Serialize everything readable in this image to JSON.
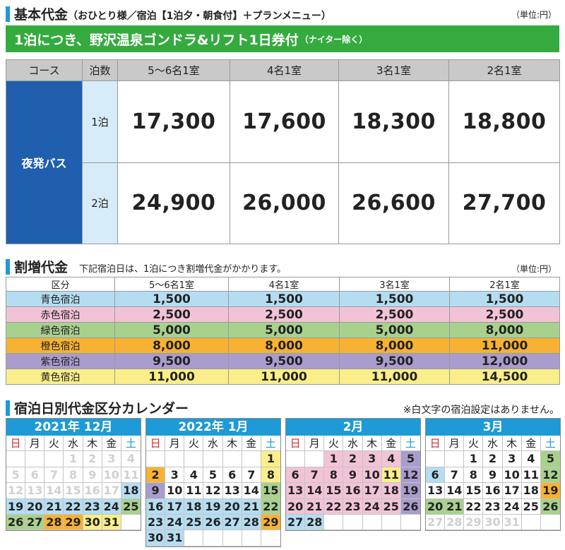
{
  "base": {
    "title": "基本代金",
    "subtitle": "（おひとり様／宿泊【1泊夕・朝食付】＋プランメニュー）",
    "unit": "（単位:円）",
    "band_main": "1泊につき、野沢温泉ゴンドラ&リフト1日券付",
    "band_small": "（ナイター除く）",
    "headers": [
      "コース",
      "泊数",
      "5〜6名1室",
      "4名1室",
      "3名1室",
      "2名1室"
    ],
    "course": "夜発バス",
    "rows": [
      {
        "nights": "1泊",
        "prices": [
          "17,300",
          "17,600",
          "18,300",
          "18,800"
        ]
      },
      {
        "nights": "2泊",
        "prices": [
          "24,900",
          "26,000",
          "26,600",
          "27,700"
        ]
      }
    ]
  },
  "surcharge": {
    "title": "割増代金",
    "note": "下記宿泊日は、1泊につき割増代金がかかります。",
    "unit": "（単位:円）",
    "headers": [
      "区分",
      "5〜6名1室",
      "4名1室",
      "3名1室",
      "2名1室"
    ],
    "rows": [
      {
        "label": "青色宿泊",
        "color": "#b5ddf2",
        "values": [
          "1,500",
          "1,500",
          "1,500",
          "1,500"
        ]
      },
      {
        "label": "赤色宿泊",
        "color": "#f2c3d7",
        "values": [
          "2,500",
          "2,500",
          "2,500",
          "2,500"
        ]
      },
      {
        "label": "緑色宿泊",
        "color": "#a9d18e",
        "values": [
          "5,000",
          "5,000",
          "5,000",
          "8,000"
        ]
      },
      {
        "label": "橙色宿泊",
        "color": "#f7b233",
        "values": [
          "8,000",
          "8,000",
          "8,000",
          "11,000"
        ]
      },
      {
        "label": "紫色宿泊",
        "color": "#a99dcd",
        "values": [
          "9,500",
          "9,500",
          "9,500",
          "12,000"
        ]
      },
      {
        "label": "黄色宿泊",
        "color": "#faee8a",
        "values": [
          "11,000",
          "11,000",
          "11,000",
          "14,500"
        ]
      }
    ]
  },
  "calendar": {
    "title": "宿泊日別代金区分カレンダー",
    "note": "※白文字の宿泊設定はありません。",
    "weekdays": [
      "日",
      "月",
      "火",
      "水",
      "木",
      "金",
      "土"
    ],
    "months": [
      {
        "title": "2021年 12月",
        "cells": [
          [
            "",
            "e"
          ],
          [
            "",
            "e"
          ],
          [
            "",
            "e"
          ],
          [
            "1",
            "g"
          ],
          [
            "2",
            "g"
          ],
          [
            "3",
            "g"
          ],
          [
            "4",
            "g"
          ],
          [
            "5",
            "g"
          ],
          [
            "6",
            "g"
          ],
          [
            "7",
            "g"
          ],
          [
            "8",
            "g"
          ],
          [
            "9",
            "g"
          ],
          [
            "10",
            "g"
          ],
          [
            "11",
            "g"
          ],
          [
            "12",
            "g"
          ],
          [
            "13",
            "g"
          ],
          [
            "14",
            "g"
          ],
          [
            "15",
            "g"
          ],
          [
            "16",
            "g"
          ],
          [
            "17",
            "g"
          ],
          [
            "18",
            "blue"
          ],
          [
            "19",
            "blue"
          ],
          [
            "20",
            "blue"
          ],
          [
            "21",
            "blue"
          ],
          [
            "22",
            "blue"
          ],
          [
            "23",
            "blue"
          ],
          [
            "24",
            "blue"
          ],
          [
            "25",
            "green"
          ],
          [
            "26",
            "green"
          ],
          [
            "27",
            "green"
          ],
          [
            "28",
            "orange"
          ],
          [
            "29",
            "orange"
          ],
          [
            "30",
            "yellow"
          ],
          [
            "31",
            "yellow"
          ],
          [
            "",
            "e"
          ]
        ]
      },
      {
        "title": "2022年 1月",
        "cells": [
          [
            "",
            "e"
          ],
          [
            "",
            "e"
          ],
          [
            "",
            "e"
          ],
          [
            "",
            "e"
          ],
          [
            "",
            "e"
          ],
          [
            "",
            "e"
          ],
          [
            "1",
            "yellow"
          ],
          [
            "2",
            "orange"
          ],
          [
            "3",
            "white"
          ],
          [
            "4",
            "white"
          ],
          [
            "5",
            "white"
          ],
          [
            "6",
            "white"
          ],
          [
            "7",
            "white"
          ],
          [
            "8",
            "yellow"
          ],
          [
            "9",
            "purple"
          ],
          [
            "10",
            "white"
          ],
          [
            "11",
            "white"
          ],
          [
            "12",
            "white"
          ],
          [
            "13",
            "white"
          ],
          [
            "14",
            "white"
          ],
          [
            "15",
            "green"
          ],
          [
            "16",
            "blue"
          ],
          [
            "17",
            "blue"
          ],
          [
            "18",
            "blue"
          ],
          [
            "19",
            "blue"
          ],
          [
            "20",
            "blue"
          ],
          [
            "21",
            "blue"
          ],
          [
            "22",
            "green"
          ],
          [
            "23",
            "blue"
          ],
          [
            "24",
            "blue"
          ],
          [
            "25",
            "blue"
          ],
          [
            "26",
            "blue"
          ],
          [
            "27",
            "blue"
          ],
          [
            "28",
            "blue"
          ],
          [
            "29",
            "orange"
          ],
          [
            "30",
            "blue"
          ],
          [
            "31",
            "blue"
          ],
          [
            "",
            "e"
          ],
          [
            "",
            "e"
          ],
          [
            "",
            "e"
          ],
          [
            "",
            "e"
          ],
          [
            "",
            "e"
          ]
        ]
      },
      {
        "title": "2月",
        "cells": [
          [
            "",
            "e"
          ],
          [
            "",
            "e"
          ],
          [
            "1",
            "pink"
          ],
          [
            "2",
            "pink"
          ],
          [
            "3",
            "pink"
          ],
          [
            "4",
            "pink"
          ],
          [
            "5",
            "purple"
          ],
          [
            "6",
            "pink"
          ],
          [
            "7",
            "pink"
          ],
          [
            "8",
            "pink"
          ],
          [
            "9",
            "pink"
          ],
          [
            "10",
            "pink"
          ],
          [
            "11",
            "yellow"
          ],
          [
            "12",
            "purple"
          ],
          [
            "13",
            "pink"
          ],
          [
            "14",
            "pink"
          ],
          [
            "15",
            "pink"
          ],
          [
            "16",
            "pink"
          ],
          [
            "17",
            "pink"
          ],
          [
            "18",
            "pink"
          ],
          [
            "19",
            "purple"
          ],
          [
            "20",
            "pink"
          ],
          [
            "21",
            "pink"
          ],
          [
            "22",
            "pink"
          ],
          [
            "23",
            "pink"
          ],
          [
            "24",
            "pink"
          ],
          [
            "25",
            "pink"
          ],
          [
            "26",
            "purple"
          ],
          [
            "27",
            "blue"
          ],
          [
            "28",
            "blue"
          ],
          [
            "",
            "e"
          ],
          [
            "",
            "e"
          ],
          [
            "",
            "e"
          ],
          [
            "",
            "e"
          ],
          [
            "",
            "e"
          ]
        ]
      },
      {
        "title": "3月",
        "cells": [
          [
            "",
            "e"
          ],
          [
            "",
            "e"
          ],
          [
            "1",
            "white"
          ],
          [
            "2",
            "white"
          ],
          [
            "3",
            "white"
          ],
          [
            "4",
            "white"
          ],
          [
            "5",
            "green"
          ],
          [
            "6",
            "blue"
          ],
          [
            "7",
            "white"
          ],
          [
            "8",
            "white"
          ],
          [
            "9",
            "white"
          ],
          [
            "10",
            "white"
          ],
          [
            "11",
            "white"
          ],
          [
            "12",
            "green"
          ],
          [
            "13",
            "white"
          ],
          [
            "14",
            "white"
          ],
          [
            "15",
            "white"
          ],
          [
            "16",
            "white"
          ],
          [
            "17",
            "white"
          ],
          [
            "18",
            "white"
          ],
          [
            "19",
            "orange"
          ],
          [
            "20",
            "green"
          ],
          [
            "21",
            "green"
          ],
          [
            "22",
            "white"
          ],
          [
            "23",
            "white"
          ],
          [
            "24",
            "white"
          ],
          [
            "25",
            "white"
          ],
          [
            "26",
            "green"
          ],
          [
            "27",
            "g"
          ],
          [
            "28",
            "g"
          ],
          [
            "29",
            "g"
          ],
          [
            "30",
            "g"
          ],
          [
            "31",
            "g"
          ],
          [
            "",
            "e"
          ],
          [
            "",
            "e"
          ]
        ]
      }
    ]
  }
}
